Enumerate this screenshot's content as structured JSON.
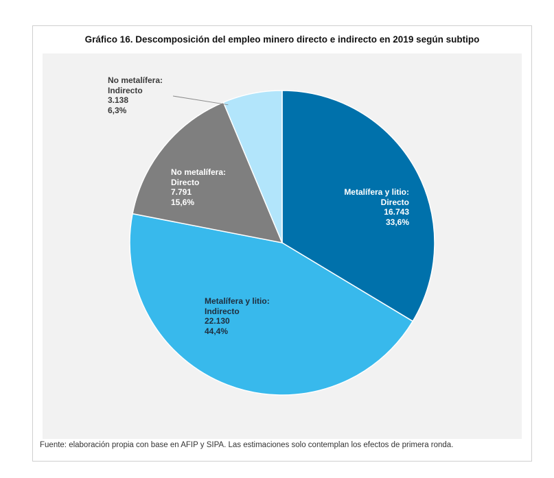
{
  "chart_data": {
    "type": "pie",
    "title": "Gráfico 16. Descomposición del empleo minero directo e indirecto en 2019 según subtipo",
    "slices": [
      {
        "name_lines": [
          "Metalífera y litio:",
          "Directo"
        ],
        "value": 16743,
        "value_label": "16.743",
        "percent_label": "33,6%",
        "color": "#0071ab",
        "text_color": "#ffffff"
      },
      {
        "name_lines": [
          "Metalífera y litio:",
          "Indirecto"
        ],
        "value": 22130,
        "value_label": "22.130",
        "percent_label": "44,4%",
        "color": "#38b9ec",
        "text_color": "#1f2d3d"
      },
      {
        "name_lines": [
          "No metalífera:",
          "Directo"
        ],
        "value": 7791,
        "value_label": "7.791",
        "percent_label": "15,6%",
        "color": "#7f7f7f",
        "text_color": "#ffffff"
      },
      {
        "name_lines": [
          "No metalífera:",
          "Indirecto"
        ],
        "value": 3138,
        "value_label": "3.138",
        "percent_label": "6,3%",
        "color": "#b2e5fb",
        "text_color": "#3a3a3a"
      }
    ],
    "source": "Fuente: elaboración propia con base en AFIP y SIPA. Las estimaciones solo contemplan los efectos de primera ronda."
  }
}
